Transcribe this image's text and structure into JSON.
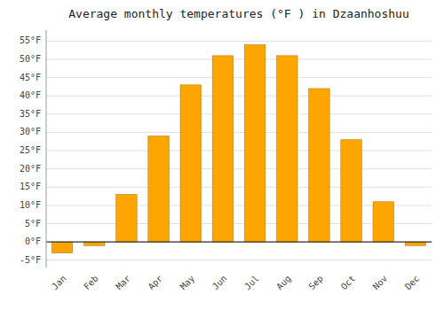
{
  "chart_data": {
    "type": "bar",
    "title": "Average monthly temperatures (°F ) in Dzaanhoshuu",
    "categories": [
      "Jan",
      "Feb",
      "Mar",
      "Apr",
      "May",
      "Jun",
      "Jul",
      "Aug",
      "Sep",
      "Oct",
      "Nov",
      "Dec"
    ],
    "values": [
      -3.0,
      -1.0,
      13.0,
      29.0,
      43.0,
      51.0,
      54.0,
      51.0,
      42.0,
      28.0,
      11.0,
      -1.0
    ],
    "color": "#ffa500",
    "ylim": [
      -7,
      58
    ],
    "yticks": [
      {
        "value": -5,
        "label": "-5°F"
      },
      {
        "value": 0,
        "label": "0°F"
      },
      {
        "value": 5,
        "label": "5°F"
      },
      {
        "value": 10,
        "label": "10°F"
      },
      {
        "value": 15,
        "label": "15°F"
      },
      {
        "value": 20,
        "label": "20°F"
      },
      {
        "value": 25,
        "label": "25°F"
      },
      {
        "value": 30,
        "label": "30°F"
      },
      {
        "value": 35,
        "label": "35°F"
      },
      {
        "value": 40,
        "label": "40°F"
      },
      {
        "value": 45,
        "label": "45°F"
      },
      {
        "value": 50,
        "label": "50°F"
      },
      {
        "value": 55,
        "label": "55°F"
      }
    ],
    "grid": true
  }
}
